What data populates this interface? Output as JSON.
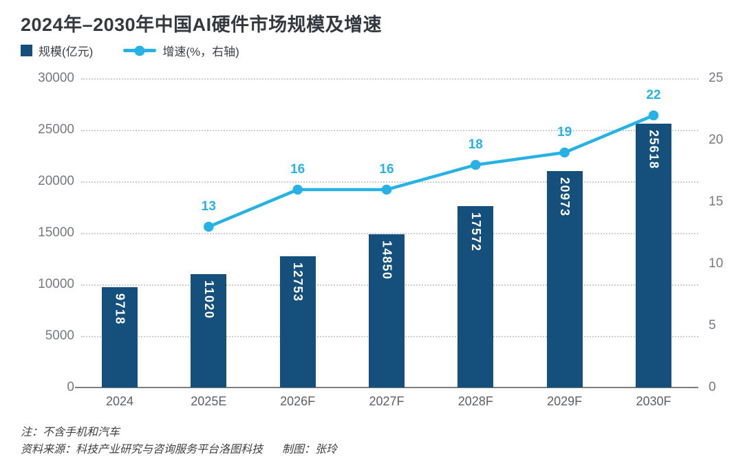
{
  "title": "2024年–2030年中国AI硬件市场规模及增速",
  "legend": {
    "bar": {
      "label": "规模(亿元)"
    },
    "line": {
      "label": "增速(%，右轴)"
    }
  },
  "chart_data": {
    "type": "bar+line",
    "title": "2024年–2030年中国AI硬件市场规模及增速",
    "categories": [
      "2024",
      "2025E",
      "2026F",
      "2027F",
      "2028F",
      "2029F",
      "2030F"
    ],
    "series": [
      {
        "name": "规模(亿元)",
        "type": "bar",
        "axis": "left",
        "values": [
          9718,
          11020,
          12753,
          14850,
          17572,
          20973,
          25618
        ]
      },
      {
        "name": "增速(%，右轴)",
        "type": "line",
        "axis": "right",
        "categories": [
          "2025E",
          "2026F",
          "2027F",
          "2028F",
          "2029F",
          "2030F"
        ],
        "values": [
          13,
          16,
          16,
          18,
          19,
          22
        ]
      }
    ],
    "left_axis": {
      "min": 0,
      "max": 30000,
      "step": 5000,
      "ticks": [
        0,
        5000,
        10000,
        15000,
        20000,
        25000,
        30000
      ]
    },
    "right_axis": {
      "min": 0,
      "max": 25,
      "step": 5,
      "ticks": [
        0,
        5,
        10,
        15,
        20,
        25
      ]
    },
    "grid": {
      "horizontal": true,
      "style": "dotted"
    },
    "legend_position": "top-left"
  },
  "footer": {
    "note": "注：不含手机和汽车",
    "source": "资料来源：科技产业研究与咨询服务平台洛图科技",
    "credit": "制图：张玲"
  },
  "colors": {
    "bar": "#15507d",
    "line": "#27b2e5",
    "bar_label": "#ffffff",
    "title_text": "#34383f",
    "axis_text": "#75797e",
    "x_axis_text": "#5c6065",
    "grid": "#cbcbcb",
    "baseline": "#7d7d7d",
    "footer_text": "#3f3f3f",
    "background": "#ffffff"
  }
}
